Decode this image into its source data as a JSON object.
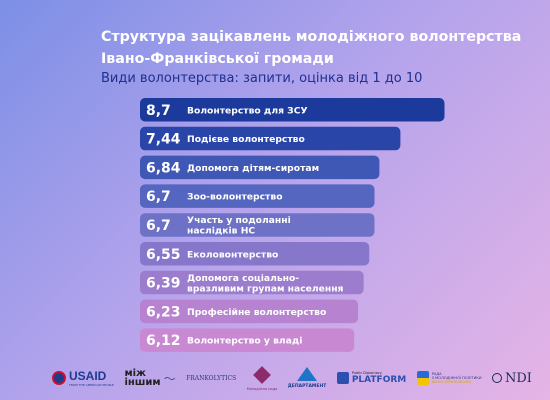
{
  "chart_data": {
    "type": "bar",
    "orientation": "horizontal",
    "title": "Структура зацікавлень молодіжного волонтерства Івано-Франківської громади",
    "subtitle": "Види волонтерства: запити, оцінка від 1 до 10",
    "categories": [
      "Волонтерство для ЗСУ",
      "Подієве волонтерство",
      "Допомога дітям-сиротам",
      "Зоо-волонтерство",
      "Участь у подоланні наслідків НС",
      "Еколовонтерство",
      "Допомога соціально-вразливим групам населення",
      "Професійне волонтерство",
      "Волонтерство у владі"
    ],
    "category_lines": [
      [
        "Волонтерство для ЗСУ"
      ],
      [
        "Подієве волонтерство"
      ],
      [
        "Допомога дітям-сиротам"
      ],
      [
        "Зоо-волонтерство"
      ],
      [
        "Участь у подоланні",
        "наслідків НС"
      ],
      [
        "Еколовонтерство"
      ],
      [
        "Допомога соціально-",
        "вразливим групам населення"
      ],
      [
        "Професійне волонтерство"
      ],
      [
        "Волонтерство у владі"
      ]
    ],
    "values": [
      8.7,
      7.44,
      6.84,
      6.7,
      6.7,
      6.55,
      6.39,
      6.23,
      6.12
    ],
    "value_labels": [
      "8,7",
      "7,44",
      "6,84",
      "6,7",
      "6,7",
      "6,55",
      "6,39",
      "6,23",
      "6,12"
    ],
    "colors": [
      "#1c3a9b",
      "#2a45a8",
      "#3f58b6",
      "#5466c0",
      "#6e72c6",
      "#8777cb",
      "#9c7ccd",
      "#b782cf",
      "#c989d2"
    ],
    "xlim": [
      0,
      10
    ],
    "grid": false,
    "legend": "none"
  },
  "logos": {
    "usaid": "USAID",
    "usaid_sub": "FROM THE AMERICAN PEOPLE",
    "mizh_line1": "між",
    "mizh_line2": "іншим",
    "frankolytics": "FRANKOLYTICS",
    "molodizhna": "Молодіжна рада",
    "department": "ДЕПАРТАМЕНТ",
    "pdp_small": "Public Diplomacy",
    "pdp_big": "PLATFORM",
    "rada_line1": "РАДА",
    "rada_line2": "З МОЛОДІЖНОЇ ПОЛІТИКИ",
    "rada_line3": "ІВАНО-ФРАНКІВСЬКА",
    "ndi": "NDI"
  }
}
